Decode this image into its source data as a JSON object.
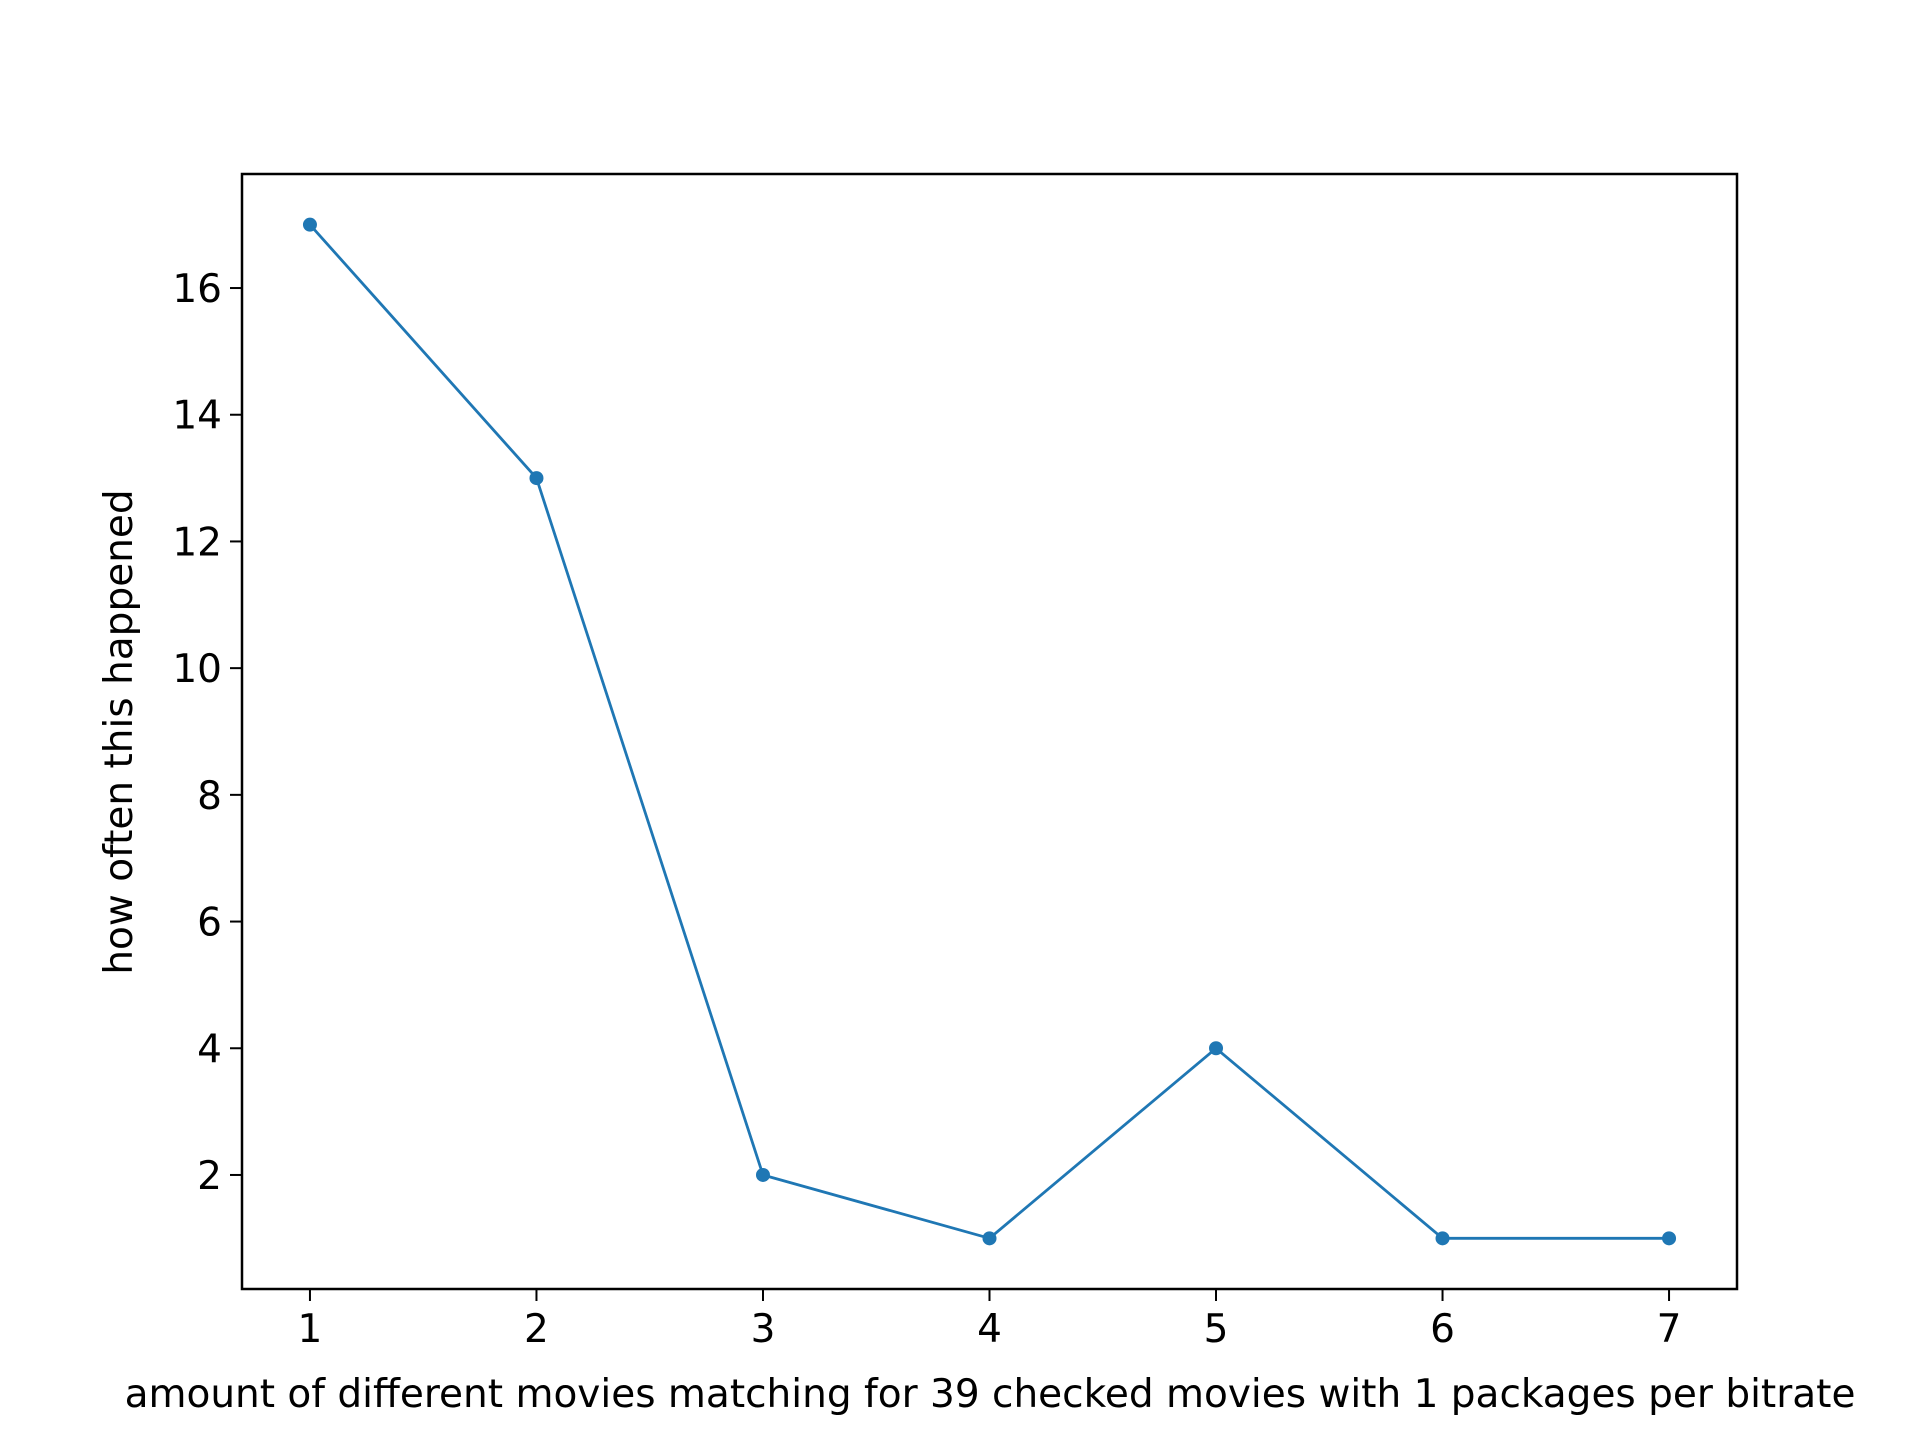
{
  "chart_data": {
    "type": "line",
    "title": "",
    "xlabel": "amount of different movies matching for 39 checked movies with 1 packages per bitrate",
    "ylabel": "how often this happened",
    "x": [
      1,
      2,
      3,
      4,
      5,
      6,
      7
    ],
    "series": [
      {
        "values": [
          17,
          13,
          2,
          1,
          4,
          1,
          1
        ],
        "color": "#1f77b4",
        "marker": "circle"
      }
    ],
    "xlim": [
      0.7,
      7.3
    ],
    "ylim": [
      0.2,
      17.8
    ],
    "xticks": [
      "1",
      "2",
      "3",
      "4",
      "5",
      "6",
      "7"
    ],
    "yticks": [
      "2",
      "4",
      "6",
      "8",
      "10",
      "12",
      "14",
      "16"
    ],
    "grid": false,
    "legend": false
  }
}
